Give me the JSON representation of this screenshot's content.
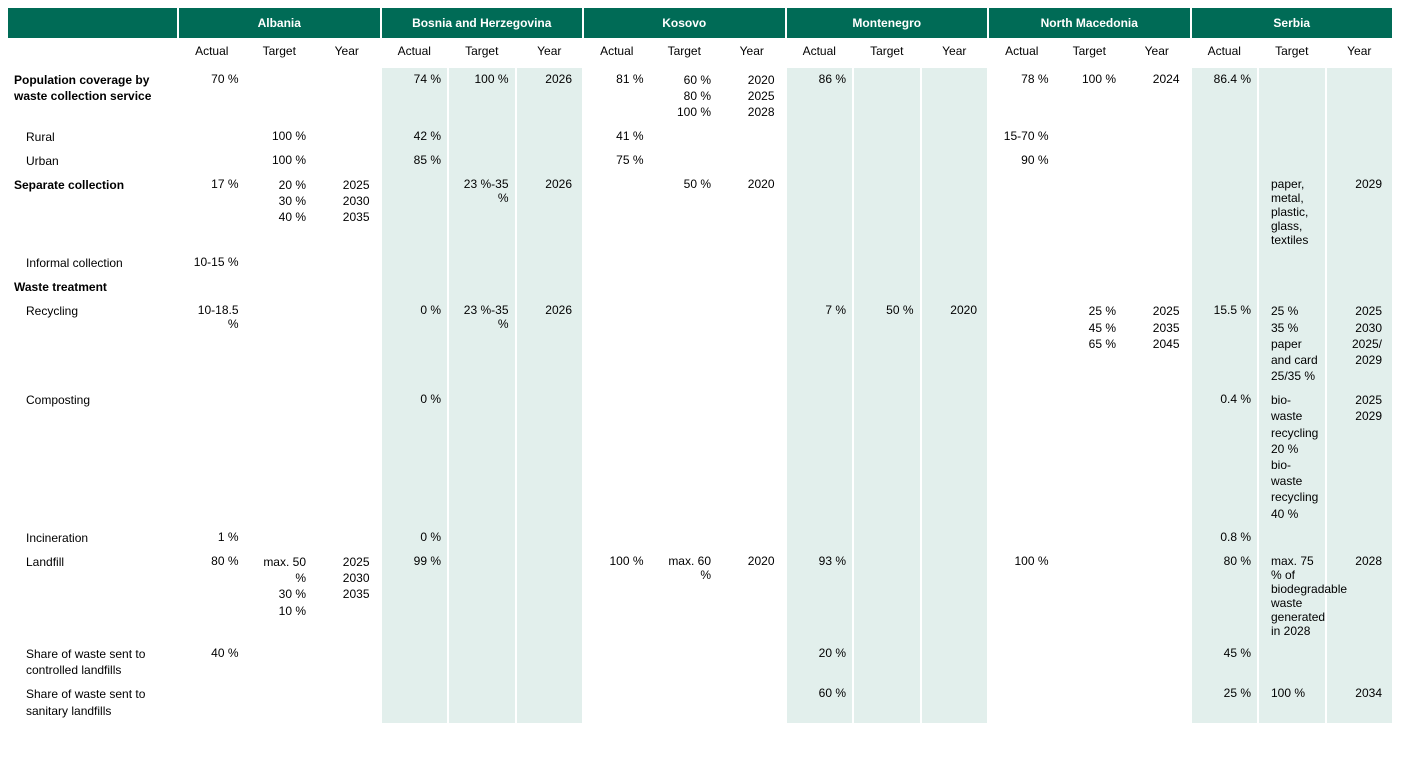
{
  "colors": {
    "header_bg": "#006b56",
    "header_fg": "#ffffff",
    "band_bg": "#e2efec",
    "plain_bg": "#ffffff",
    "text": "#000000"
  },
  "countries": [
    "Albania",
    "Bosnia and Herzegovina",
    "Kosovo",
    "Montenegro",
    "North Macedonia",
    "Serbia"
  ],
  "subheaders": [
    "Actual",
    "Target",
    "Year"
  ],
  "band_pattern": [
    false,
    true,
    false,
    true,
    false,
    true
  ],
  "rows": [
    {
      "label": "Population coverage by waste collection service",
      "bold": true,
      "cells": [
        {
          "actual": "70 %",
          "target": "",
          "year": ""
        },
        {
          "actual": "74 %",
          "target": "100 %",
          "year": "2026"
        },
        {
          "actual": "81 %",
          "target": "60 %\n80 %\n100 %",
          "year": "2020\n2025\n2028"
        },
        {
          "actual": "86 %",
          "target": "",
          "year": ""
        },
        {
          "actual": "78 %",
          "target": "100 %",
          "year": "2024"
        },
        {
          "actual": "86.4 %",
          "target": "",
          "year": ""
        }
      ]
    },
    {
      "label": "Rural",
      "indent": true,
      "cells": [
        {
          "actual": "",
          "target": "100 %",
          "year": ""
        },
        {
          "actual": "42 %",
          "target": "",
          "year": ""
        },
        {
          "actual": "41 %",
          "target": "",
          "year": ""
        },
        {
          "actual": "",
          "target": "",
          "year": ""
        },
        {
          "actual": "15-70 %",
          "target": "",
          "year": ""
        },
        {
          "actual": "",
          "target": "",
          "year": ""
        }
      ]
    },
    {
      "label": "Urban",
      "indent": true,
      "cells": [
        {
          "actual": "",
          "target": "100 %",
          "year": ""
        },
        {
          "actual": "85 %",
          "target": "",
          "year": ""
        },
        {
          "actual": "75 %",
          "target": "",
          "year": ""
        },
        {
          "actual": "",
          "target": "",
          "year": ""
        },
        {
          "actual": "90 %",
          "target": "",
          "year": ""
        },
        {
          "actual": "",
          "target": "",
          "year": ""
        }
      ]
    },
    {
      "label": "Separate collection",
      "bold": true,
      "cells": [
        {
          "actual": "17 %",
          "target": "20 %\n30 %\n40 %",
          "year": "2025\n2030\n2035"
        },
        {
          "actual": "",
          "target": "23 %-35 %",
          "year": "2026"
        },
        {
          "actual": "",
          "target": "50 %",
          "year": "2020"
        },
        {
          "actual": "",
          "target": "",
          "year": ""
        },
        {
          "actual": "",
          "target": "",
          "year": ""
        },
        {
          "actual": "",
          "target": "paper, metal, plastic, glass, textiles",
          "year": "2029"
        }
      ]
    },
    {
      "label": "Informal collection",
      "indent": true,
      "cells": [
        {
          "actual": "10-15 %",
          "target": "",
          "year": ""
        },
        {
          "actual": "",
          "target": "",
          "year": ""
        },
        {
          "actual": "",
          "target": "",
          "year": ""
        },
        {
          "actual": "",
          "target": "",
          "year": ""
        },
        {
          "actual": "",
          "target": "",
          "year": ""
        },
        {
          "actual": "",
          "target": "",
          "year": ""
        }
      ]
    },
    {
      "label": "Waste treatment",
      "bold": true,
      "cells": [
        {
          "actual": "",
          "target": "",
          "year": ""
        },
        {
          "actual": "",
          "target": "",
          "year": ""
        },
        {
          "actual": "",
          "target": "",
          "year": ""
        },
        {
          "actual": "",
          "target": "",
          "year": ""
        },
        {
          "actual": "",
          "target": "",
          "year": ""
        },
        {
          "actual": "",
          "target": "",
          "year": ""
        }
      ]
    },
    {
      "label": "Recycling",
      "indent": true,
      "cells": [
        {
          "actual": "10-18.5 %",
          "target": "",
          "year": ""
        },
        {
          "actual": "0 %",
          "target": "23 %-35 %",
          "year": "2026"
        },
        {
          "actual": "",
          "target": "",
          "year": ""
        },
        {
          "actual": "7 %",
          "target": "50 %",
          "year": "2020"
        },
        {
          "actual": "",
          "target": "25 %\n45 %\n65 %",
          "year": "2025\n2035\n2045"
        },
        {
          "actual": "15.5 %",
          "target": "25 %\n35 %\npaper and card 25/35 %",
          "year": "2025\n2030\n2025/\n2029"
        }
      ]
    },
    {
      "label": "Composting",
      "indent": true,
      "cells": [
        {
          "actual": "",
          "target": "",
          "year": ""
        },
        {
          "actual": "0 %",
          "target": "",
          "year": ""
        },
        {
          "actual": "",
          "target": "",
          "year": ""
        },
        {
          "actual": "",
          "target": "",
          "year": ""
        },
        {
          "actual": "",
          "target": "",
          "year": ""
        },
        {
          "actual": "0.4 %",
          "target": "bio-waste recycling 20 %\nbio-waste recycling 40 %",
          "year": "2025\n2029"
        }
      ]
    },
    {
      "label": "Incineration",
      "indent": true,
      "cells": [
        {
          "actual": "1 %",
          "target": "",
          "year": ""
        },
        {
          "actual": "0 %",
          "target": "",
          "year": ""
        },
        {
          "actual": "",
          "target": "",
          "year": ""
        },
        {
          "actual": "",
          "target": "",
          "year": ""
        },
        {
          "actual": "",
          "target": "",
          "year": ""
        },
        {
          "actual": "0.8 %",
          "target": "",
          "year": ""
        }
      ]
    },
    {
      "label": "Landfill",
      "indent": true,
      "cells": [
        {
          "actual": "80 %",
          "target": "max. 50 %\n30 %\n10 %",
          "year": "2025\n2030\n2035"
        },
        {
          "actual": "99 %",
          "target": "",
          "year": ""
        },
        {
          "actual": "100 %",
          "target": "max. 60 %",
          "year": "2020"
        },
        {
          "actual": "93 %",
          "target": "",
          "year": ""
        },
        {
          "actual": "100 %",
          "target": "",
          "year": ""
        },
        {
          "actual": "80 %",
          "target": "max. 75 % of biodegradable waste generated in 2028",
          "year": "2028"
        }
      ]
    },
    {
      "label": "Share of waste sent to controlled landfills",
      "indent": true,
      "cells": [
        {
          "actual": "40 %",
          "target": "",
          "year": ""
        },
        {
          "actual": "",
          "target": "",
          "year": ""
        },
        {
          "actual": "",
          "target": "",
          "year": ""
        },
        {
          "actual": "20 %",
          "target": "",
          "year": ""
        },
        {
          "actual": "",
          "target": "",
          "year": ""
        },
        {
          "actual": "45 %",
          "target": "",
          "year": ""
        }
      ]
    },
    {
      "label": "Share of waste sent to sanitary landfills",
      "indent": true,
      "cells": [
        {
          "actual": "",
          "target": "",
          "year": ""
        },
        {
          "actual": "",
          "target": "",
          "year": ""
        },
        {
          "actual": "",
          "target": "",
          "year": ""
        },
        {
          "actual": "60 %",
          "target": "",
          "year": ""
        },
        {
          "actual": "",
          "target": "",
          "year": ""
        },
        {
          "actual": "25 %",
          "target": "100 %",
          "year": "2034"
        }
      ]
    }
  ]
}
